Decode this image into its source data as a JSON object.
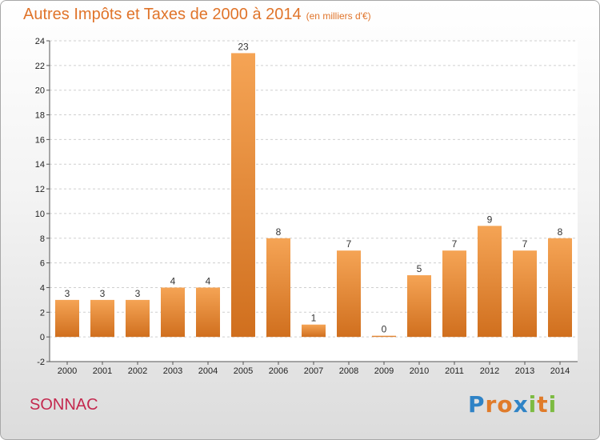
{
  "title": "Autres Impôts et Taxes de 2000 à 2014",
  "subtitle": "(en milliers d'€)",
  "location": "SONNAC",
  "logo": {
    "text": "Proxiti",
    "letters": [
      {
        "ch": "P",
        "color": "#2f83c6"
      },
      {
        "ch": "r",
        "color": "#e07b2a"
      },
      {
        "ch": "o",
        "color": "#e07b2a"
      },
      {
        "ch": "x",
        "color": "#2f83c6"
      },
      {
        "ch": "i",
        "color": "#7dbb42"
      },
      {
        "ch": "t",
        "color": "#e07b2a"
      },
      {
        "ch": "i",
        "color": "#7dbb42"
      }
    ]
  },
  "colors": {
    "bar_top": "#f5a455",
    "bar_bottom": "#d06f1e",
    "title": "#e0742a",
    "location": "#c4284e",
    "grid": "#cfcfcf"
  },
  "chart_data": {
    "type": "bar",
    "categories": [
      "2000",
      "2001",
      "2002",
      "2003",
      "2004",
      "2005",
      "2006",
      "2007",
      "2008",
      "2009",
      "2010",
      "2011",
      "2012",
      "2013",
      "2014"
    ],
    "values": [
      3,
      3,
      3,
      4,
      4,
      23,
      8,
      1,
      7,
      0,
      5,
      7,
      9,
      7,
      8
    ],
    "ylim": [
      -2,
      24
    ],
    "yticks": [
      -2,
      0,
      2,
      4,
      6,
      8,
      10,
      12,
      14,
      16,
      18,
      20,
      22,
      24
    ],
    "grid": "horizontal dashed",
    "legend": "none"
  }
}
